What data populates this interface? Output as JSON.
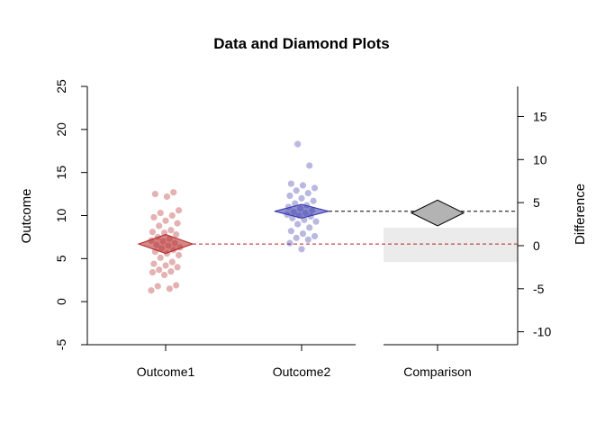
{
  "chart_data": {
    "type": "scatter",
    "title": "Data and Diamond Plots",
    "ylabel": "Outcome",
    "y2label": "Difference",
    "categories": [
      "Outcome1",
      "Outcome2",
      "Comparison"
    ],
    "ylim": [
      -5,
      25
    ],
    "y_ticks": [
      -5,
      0,
      5,
      10,
      15,
      20,
      25
    ],
    "y2lim": [
      -11.5,
      18.5
    ],
    "y2_ticks": [
      -10,
      -5,
      0,
      5,
      10,
      15
    ],
    "grid": false,
    "legend": "none",
    "series": [
      {
        "category": "Outcome1",
        "color": "#b22222",
        "points": [
          1.3,
          1.5,
          1.8,
          1.9,
          3.1,
          3.4,
          3.5,
          3.7,
          4.0,
          4.2,
          4.4,
          4.6,
          5.1,
          5.4,
          5.6,
          5.8,
          6.0,
          6.2,
          6.3,
          6.5,
          6.6,
          6.8,
          7.0,
          7.1,
          7.3,
          7.5,
          7.8,
          8.0,
          8.1,
          8.3,
          8.8,
          9.1,
          9.4,
          9.8,
          10.0,
          10.3,
          10.6,
          12.2,
          12.5,
          12.7
        ],
        "mean": 6.7,
        "ci": [
          5.6,
          7.8
        ]
      },
      {
        "category": "Outcome2",
        "color": "#3333aa",
        "points": [
          6.1,
          6.8,
          7.2,
          7.4,
          7.6,
          7.9,
          8.2,
          8.6,
          9.0,
          9.3,
          9.5,
          9.7,
          9.9,
          10.0,
          10.1,
          10.3,
          10.4,
          10.6,
          10.8,
          11.0,
          11.2,
          11.4,
          11.7,
          12.0,
          12.3,
          12.6,
          12.9,
          13.2,
          13.5,
          13.7,
          15.8,
          18.3
        ],
        "mean": 10.5,
        "ci": [
          9.7,
          11.3
        ]
      }
    ],
    "comparison": {
      "category": "Comparison",
      "difference": 3.8,
      "ci": [
        2.3,
        5.3
      ],
      "band": [
        -1.9,
        2.1
      ],
      "band_color": "#ebebeb"
    }
  }
}
